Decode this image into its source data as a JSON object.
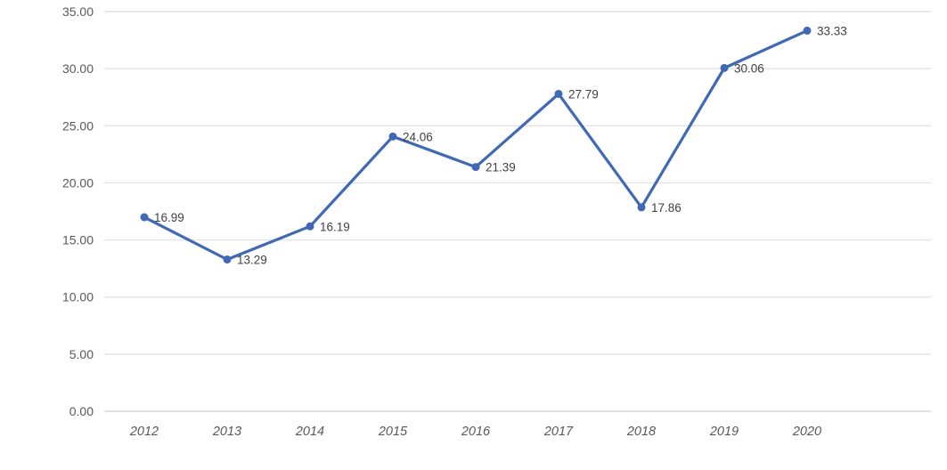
{
  "chart_data": {
    "type": "line",
    "title": "",
    "xlabel": "",
    "ylabel": "",
    "categories": [
      "2012",
      "2013",
      "2014",
      "2015",
      "2016",
      "2017",
      "2018",
      "2019",
      "2020"
    ],
    "values": [
      16.99,
      13.29,
      16.19,
      24.06,
      21.39,
      27.79,
      17.86,
      30.06,
      33.33
    ],
    "data_labels": [
      "16.99",
      "13.29",
      "16.19",
      "24.06",
      "21.39",
      "27.79",
      "17.86",
      "30.06",
      "33.33"
    ],
    "series": [
      {
        "name": "series-1",
        "values": [
          16.99,
          13.29,
          16.19,
          24.06,
          21.39,
          27.79,
          17.86,
          30.06,
          33.33
        ]
      }
    ],
    "ylim": [
      0,
      35
    ],
    "y_tick_step": 5,
    "y_ticks": [
      {
        "value": 35,
        "label": "35.00"
      },
      {
        "value": 30,
        "label": "30.00"
      },
      {
        "value": 25,
        "label": "25.00"
      },
      {
        "value": 20,
        "label": "20.00"
      },
      {
        "value": 15,
        "label": "15.00"
      },
      {
        "value": 10,
        "label": "10.00"
      },
      {
        "value": 5,
        "label": "5.00"
      },
      {
        "value": 0,
        "label": "0.00"
      }
    ],
    "grid": true,
    "legend_position": "none",
    "marker": "circle",
    "colors": {
      "series_line": "#3F68B5",
      "series_marker": "#3F68B5",
      "gridline": "#E2E2E2",
      "axis_line": "#D6D6D6",
      "y_tick_label": "#595959",
      "x_tick_label": "#595959",
      "data_label": "#404040",
      "background": "#FFFFFF"
    }
  }
}
